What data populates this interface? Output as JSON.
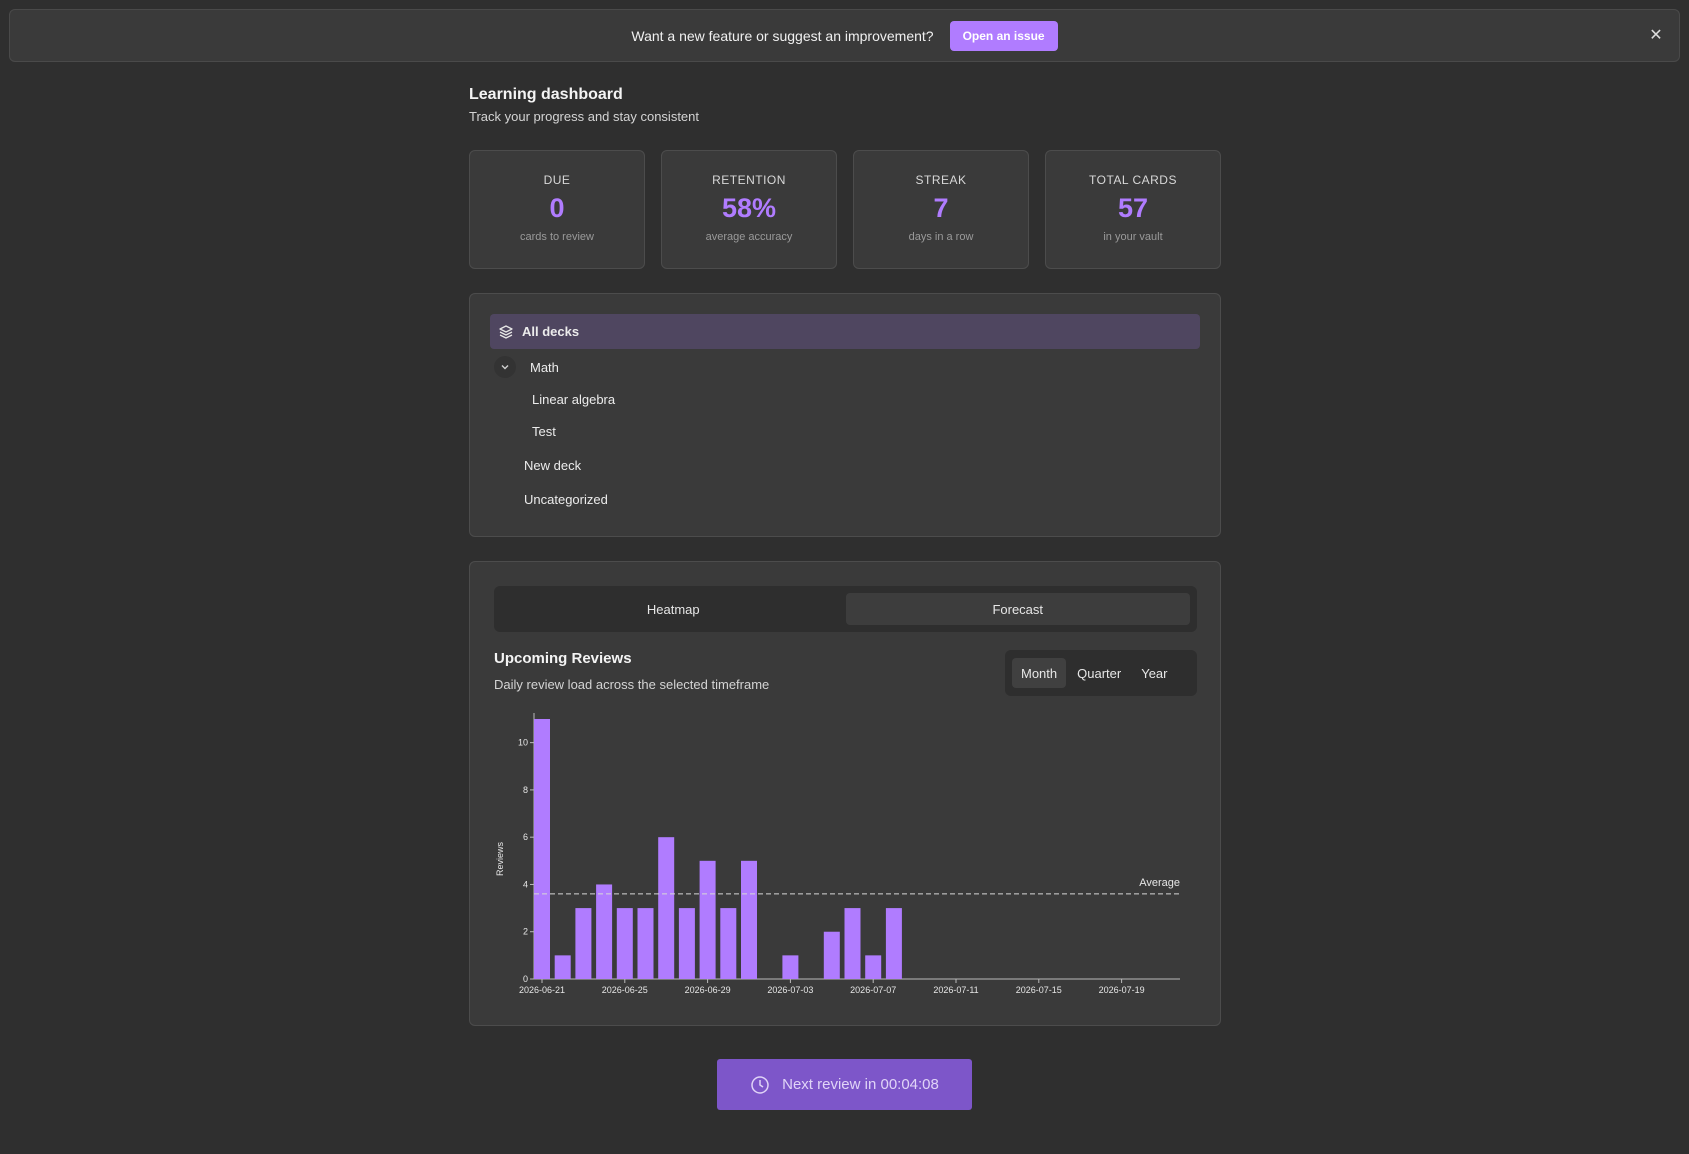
{
  "banner": {
    "text": "Want a new feature or suggest an improvement?",
    "button_label": "Open an issue",
    "close_glyph": "✕"
  },
  "header": {
    "title": "Learning dashboard",
    "subtitle": "Track your progress and stay consistent"
  },
  "stats": [
    {
      "label": "DUE",
      "value": "0",
      "sub": "cards to review"
    },
    {
      "label": "RETENTION",
      "value": "58%",
      "sub": "average accuracy"
    },
    {
      "label": "STREAK",
      "value": "7",
      "sub": "days in a row"
    },
    {
      "label": "TOTAL CARDS",
      "value": "57",
      "sub": "in your vault"
    }
  ],
  "decks": {
    "all_label": "All decks",
    "math_label": "Math",
    "linear_algebra_label": "Linear algebra",
    "test_label": "Test",
    "new_deck_label": "New deck",
    "uncategorized_label": "Uncategorized"
  },
  "chart_panel": {
    "tabs": [
      "Heatmap",
      "Forecast"
    ],
    "active_tab": "Forecast",
    "title": "Upcoming Reviews",
    "subtitle": "Daily review load across the selected timeframe",
    "ranges": [
      "Month",
      "Quarter",
      "Year"
    ],
    "active_range": "Month"
  },
  "chart_data": {
    "type": "bar",
    "title": "",
    "xlabel": "",
    "ylabel": "Reviews",
    "ylim": [
      0,
      11
    ],
    "yticks": [
      0,
      2,
      4,
      6,
      8,
      10
    ],
    "x_start": "2026-06-21",
    "x_end": "2026-07-21",
    "xticks": [
      "2026-06-21",
      "2026-06-25",
      "2026-06-29",
      "2026-07-03",
      "2026-07-07",
      "2026-07-11",
      "2026-07-15",
      "2026-07-19"
    ],
    "bar_color": "#b07cff",
    "categories": [
      "2026-06-21",
      "2026-06-22",
      "2026-06-23",
      "2026-06-24",
      "2026-06-25",
      "2026-06-26",
      "2026-06-27",
      "2026-06-28",
      "2026-06-29",
      "2026-06-30",
      "2026-07-01",
      "2026-07-02",
      "2026-07-03",
      "2026-07-04",
      "2026-07-05",
      "2026-07-06",
      "2026-07-07",
      "2026-07-08"
    ],
    "values": [
      11,
      1,
      3,
      4,
      3,
      3,
      6,
      3,
      5,
      3,
      5,
      0,
      1,
      0,
      2,
      3,
      1,
      3
    ],
    "average": {
      "label": "Average",
      "value": 3.6
    }
  },
  "footer": {
    "next_review_label": "Next review in 00:04:08"
  }
}
